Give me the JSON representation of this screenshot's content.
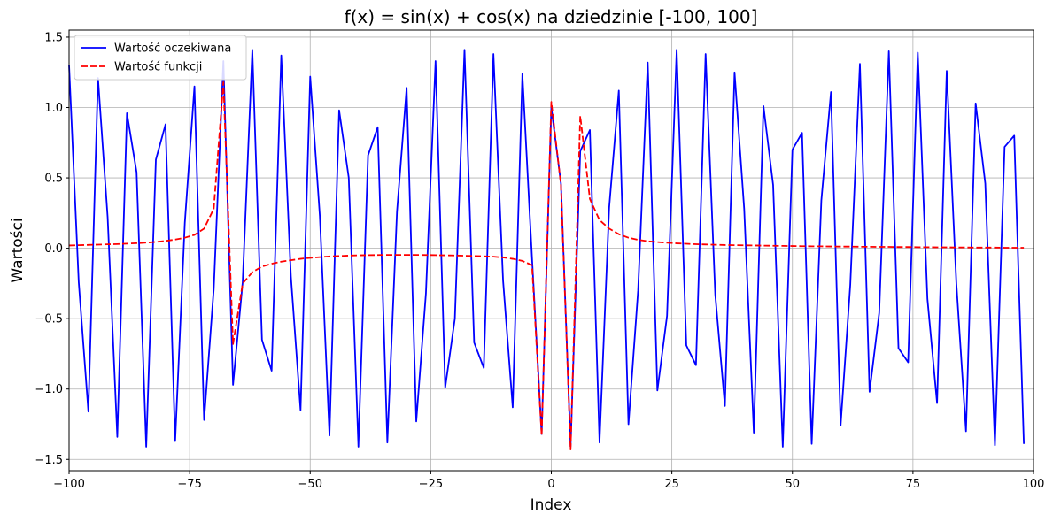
{
  "chart_data": {
    "type": "line",
    "title": "f(x) = sin(x) + cos(x) na dziedzinie [-100, 100]",
    "xlabel": "Index",
    "ylabel": "Wartości",
    "xlim": [
      -100,
      100
    ],
    "ylim": [
      -1.58,
      1.55
    ],
    "xticks": [
      -100,
      -75,
      -50,
      -25,
      0,
      25,
      50,
      75,
      100
    ],
    "xtick_labels": [
      "−100",
      "−75",
      "−50",
      "−25",
      "0",
      "25",
      "50",
      "75",
      "100"
    ],
    "yticks": [
      -1.5,
      -1.0,
      -0.5,
      0.0,
      0.5,
      1.0,
      1.5
    ],
    "ytick_labels": [
      "−1.5",
      "−1.0",
      "−0.5",
      "0.0",
      "0.5",
      "1.0",
      "1.5"
    ],
    "grid": true,
    "legend_position": "top-left",
    "x": [
      -100,
      -98,
      -96,
      -94,
      -92,
      -90,
      -88,
      -86,
      -84,
      -82,
      -80,
      -78,
      -76,
      -74,
      -72,
      -70,
      -68,
      -66,
      -64,
      -62,
      -60,
      -58,
      -56,
      -54,
      -52,
      -50,
      -48,
      -46,
      -44,
      -42,
      -40,
      -38,
      -36,
      -34,
      -32,
      -30,
      -28,
      -26,
      -24,
      -22,
      -20,
      -18,
      -16,
      -14,
      -12,
      -10,
      -8,
      -6,
      -4,
      -2,
      0,
      2,
      4,
      6,
      8,
      10,
      12,
      14,
      16,
      18,
      20,
      22,
      24,
      26,
      28,
      30,
      32,
      34,
      36,
      38,
      40,
      42,
      44,
      46,
      48,
      50,
      52,
      54,
      56,
      58,
      60,
      62,
      64,
      66,
      68,
      70,
      72,
      74,
      76,
      78,
      80,
      82,
      84,
      86,
      88,
      90,
      92,
      94,
      96,
      98
    ],
    "series": [
      {
        "name": "Wartość oczekiwana",
        "color": "#0000ff",
        "linestyle": "solid",
        "values": [
          1.3,
          -0.24,
          -1.16,
          1.21,
          0.22,
          -1.34,
          0.96,
          0.54,
          -1.41,
          0.63,
          0.88,
          -1.37,
          0.18,
          1.15,
          -1.22,
          -0.29,
          1.33,
          -0.97,
          -0.24,
          1.41,
          -0.65,
          -0.87,
          1.37,
          -0.2,
          -1.15,
          1.22,
          0.23,
          -1.33,
          0.98,
          0.5,
          -1.41,
          0.66,
          0.86,
          -1.38,
          0.26,
          1.14,
          -1.23,
          -0.32,
          1.33,
          -0.99,
          -0.5,
          1.41,
          -0.67,
          -0.85,
          1.38,
          -0.23,
          -1.13,
          1.24,
          -0.07,
          -1.32,
          1.0,
          0.46,
          -1.41,
          0.69,
          0.84,
          -1.38,
          0.29,
          1.12,
          -1.25,
          -0.3,
          1.32,
          -1.01,
          -0.48,
          1.41,
          -0.69,
          -0.83,
          1.38,
          -0.33,
          -1.12,
          1.25,
          0.28,
          -1.31,
          1.01,
          0.45,
          -1.41,
          0.7,
          0.82,
          -1.39,
          0.34,
          1.11,
          -1.26,
          -0.26,
          1.31,
          -1.02,
          -0.46,
          1.4,
          -0.71,
          -0.81,
          1.39,
          -0.36,
          -1.1,
          1.26,
          -0.25,
          -1.3,
          1.03,
          0.46,
          -1.4,
          0.72,
          0.8,
          -1.39
        ]
      },
      {
        "name": "Wartość funkcji",
        "color": "#ff0000",
        "linestyle": "dashed",
        "values": [
          0.02,
          0.022,
          0.024,
          0.026,
          0.028,
          0.03,
          0.033,
          0.036,
          0.04,
          0.045,
          0.052,
          0.062,
          0.075,
          0.095,
          0.14,
          0.28,
          1.18,
          -0.68,
          -0.25,
          -0.17,
          -0.13,
          -0.11,
          -0.095,
          -0.085,
          -0.075,
          -0.068,
          -0.063,
          -0.058,
          -0.055,
          -0.052,
          -0.05,
          -0.049,
          -0.048,
          -0.047,
          -0.047,
          -0.047,
          -0.047,
          -0.048,
          -0.049,
          -0.05,
          -0.051,
          -0.053,
          -0.055,
          -0.057,
          -0.06,
          -0.065,
          -0.075,
          -0.09,
          -0.12,
          -1.33,
          1.04,
          0.45,
          -1.43,
          0.94,
          0.35,
          0.2,
          0.14,
          0.1,
          0.075,
          0.06,
          0.05,
          0.044,
          0.039,
          0.035,
          0.032,
          0.029,
          0.027,
          0.025,
          0.023,
          0.022,
          0.021,
          0.02,
          0.019,
          0.018,
          0.017,
          0.016,
          0.015,
          0.014,
          0.014,
          0.013,
          0.012,
          0.012,
          0.011,
          0.011,
          0.01,
          0.01,
          0.009,
          0.009,
          0.008,
          0.008,
          0.007,
          0.007,
          0.006,
          0.006,
          0.005,
          0.005,
          0.005,
          0.004,
          0.004,
          0.004
        ]
      }
    ]
  }
}
